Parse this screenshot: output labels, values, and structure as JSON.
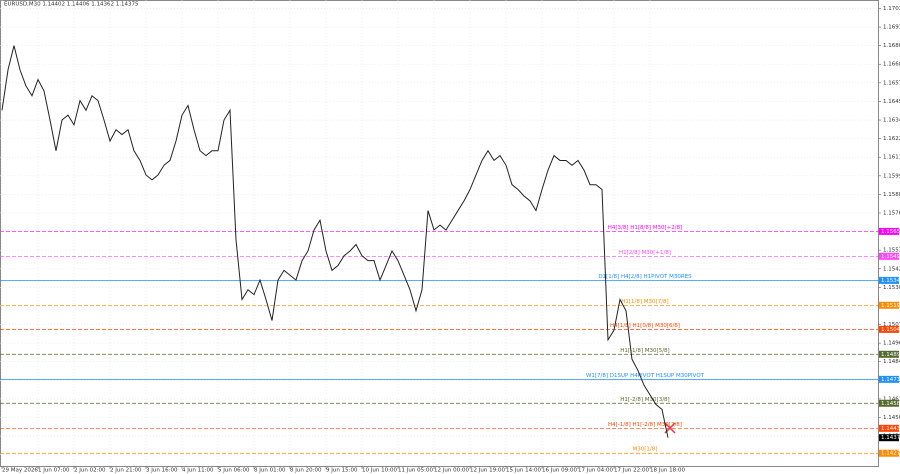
{
  "chart_data": {
    "type": "line",
    "title": "EURUSD,M30  1.14402 1.14406 1.14362 1.14375",
    "color": "#222222",
    "grid": true,
    "xlim": [
      0,
      146
    ],
    "ylim": [
      1.142,
      1.1707
    ],
    "xticks": [
      {
        "value": 0,
        "label": "29 May 2026"
      },
      {
        "value": 6,
        "label": "1 Jun 07:00"
      },
      {
        "value": 12,
        "label": "2 Jun 02:00"
      },
      {
        "value": 18,
        "label": "2 Jun 21:00"
      },
      {
        "value": 24,
        "label": "3 Jun 16:00"
      },
      {
        "value": 30,
        "label": "4 Jun 11:00"
      },
      {
        "value": 36,
        "label": "5 Jun 06:00"
      },
      {
        "value": 42,
        "label": "8 Jun 01:00"
      },
      {
        "value": 48,
        "label": "8 Jun 20:00"
      },
      {
        "value": 54,
        "label": "9 Jun 15:00"
      },
      {
        "value": 60,
        "label": "10 Jun 10:00"
      },
      {
        "value": 66,
        "label": "11 Jun 05:00"
      },
      {
        "value": 72,
        "label": "12 Jun 00:00"
      },
      {
        "value": 78,
        "label": "12 Jun 19:00"
      },
      {
        "value": 84,
        "label": "15 Jun 14:00"
      },
      {
        "value": 90,
        "label": "16 Jun 09:00"
      },
      {
        "value": 96,
        "label": "17 Jun 04:00"
      },
      {
        "value": 102,
        "label": "17 Jun 22:00"
      },
      {
        "value": 108,
        "label": "18 Jun 18:00"
      }
    ],
    "yticks": [
      {
        "value": 1.1703,
        "label": "1.17030"
      },
      {
        "value": 1.16915,
        "label": "1.16915"
      },
      {
        "value": 1.168,
        "label": "1.16800"
      },
      {
        "value": 1.16685,
        "label": "1.16685"
      },
      {
        "value": 1.1657,
        "label": "1.16570"
      },
      {
        "value": 1.16455,
        "label": "1.16455"
      },
      {
        "value": 1.1634,
        "label": "1.16340"
      },
      {
        "value": 1.16225,
        "label": "1.16225"
      },
      {
        "value": 1.1611,
        "label": "1.16110"
      },
      {
        "value": 1.15995,
        "label": "1.15995"
      },
      {
        "value": 1.1588,
        "label": "1.15880"
      },
      {
        "value": 1.15765,
        "label": "1.15765"
      },
      {
        "value": 1.1565,
        "label": "1.15650"
      },
      {
        "value": 1.15535,
        "label": "1.15535"
      },
      {
        "value": 1.1542,
        "label": "1.15420"
      },
      {
        "value": 1.15305,
        "label": "1.15305"
      },
      {
        "value": 1.1519,
        "label": "1.15190"
      },
      {
        "value": 1.15075,
        "label": "1.15075"
      },
      {
        "value": 1.1496,
        "label": "1.14960"
      },
      {
        "value": 1.14845,
        "label": "1.14845"
      },
      {
        "value": 1.1473,
        "label": "1.14730"
      },
      {
        "value": 1.14615,
        "label": "1.14615"
      },
      {
        "value": 1.145,
        "label": "1.14500"
      },
      {
        "value": 1.14385,
        "label": "1.14385"
      },
      {
        "value": 1.1427,
        "label": "1.14270"
      }
    ],
    "values": [
      1.164,
      1.1665,
      1.168,
      1.1665,
      1.1655,
      1.1649,
      1.1659,
      1.1652,
      1.1634,
      1.1615,
      1.1634,
      1.1637,
      1.1631,
      1.1646,
      1.164,
      1.1649,
      1.1646,
      1.1634,
      1.1621,
      1.1628,
      1.1625,
      1.1628,
      1.1615,
      1.1609,
      1.16,
      1.1597,
      1.16,
      1.1606,
      1.1609,
      1.1621,
      1.1637,
      1.1643,
      1.1628,
      1.1615,
      1.1612,
      1.1615,
      1.1615,
      1.1634,
      1.164,
      1.156,
      1.1523,
      1.1529,
      1.1526,
      1.1535,
      1.1523,
      1.151,
      1.1535,
      1.1541,
      1.1538,
      1.1535,
      1.1547,
      1.1553,
      1.1566,
      1.1572,
      1.1553,
      1.1541,
      1.1544,
      1.155,
      1.1553,
      1.1557,
      1.155,
      1.1547,
      1.1547,
      1.1535,
      1.1544,
      1.1553,
      1.1547,
      1.1538,
      1.1529,
      1.1516,
      1.1529,
      1.1578,
      1.1566,
      1.1569,
      1.1566,
      1.1572,
      1.1578,
      1.1584,
      1.1591,
      1.16,
      1.1609,
      1.1615,
      1.1609,
      1.1612,
      1.1606,
      1.1594,
      1.1591,
      1.1587,
      1.1584,
      1.1578,
      1.1591,
      1.1603,
      1.1612,
      1.1609,
      1.1609,
      1.1606,
      1.1609,
      1.1603,
      1.1594,
      1.1594,
      1.1591,
      1.1498,
      1.1504,
      1.1523,
      1.1516,
      1.1486,
      1.1479,
      1.147,
      1.1464,
      1.1458,
      1.1455,
      1.14375
    ],
    "last": 1.14375,
    "levels": [
      {
        "label": "H4[3/8] H1[8/8] M30[+2/8]",
        "value": 1.15651,
        "color": "#ff00ff",
        "dashed": true
      },
      {
        "label": "H1[2/8] M30[+1/8]",
        "value": 1.15497,
        "color": "#ff44ff",
        "dashed": true
      },
      {
        "label": "D1[1/8] H4[2/8] H1PIVOT M30RES",
        "value": 1.15348,
        "color": "#1e90ff",
        "dashed": false
      },
      {
        "label": "H1[1/8] M30[7/8]",
        "value": 1.15194,
        "color": "#ff8c00",
        "dashed": true
      },
      {
        "label": "H4[1/8] H1[0/8] M30[6/8]",
        "value": 1.15045,
        "color": "#ff4500",
        "dashed": true
      },
      {
        "label": "H1[-1/8] M30[5/8]",
        "value": 1.14891,
        "color": "#556b2f",
        "dashed": true
      },
      {
        "label": "W1[7/8] D1SUP H4PIVOT H1SUP M30PIVOT",
        "value": 1.14736,
        "color": "#1e90ff",
        "dashed": false
      },
      {
        "label": "H1[-2/8] M30[3/8]",
        "value": 1.14588,
        "color": "#556b2f",
        "dashed": true
      },
      {
        "label": "H4[-1/8] H1[-2/8] M30[2/8]",
        "value": 1.14433,
        "color": "#ff4500",
        "dashed": true
      },
      {
        "label": "M30[1/8]",
        "value": 1.14279,
        "color": "#ff8c00",
        "dashed": true
      }
    ]
  }
}
